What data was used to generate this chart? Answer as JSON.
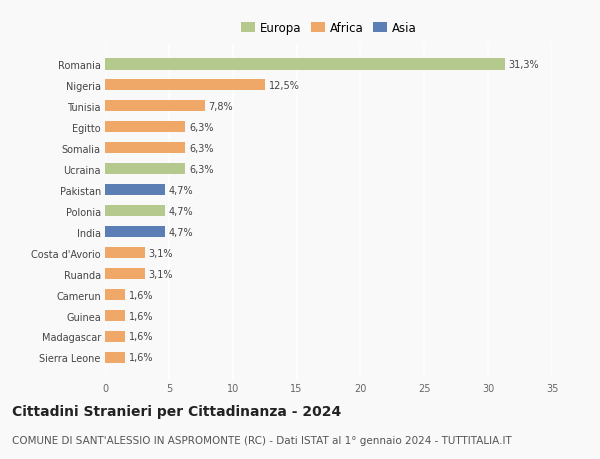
{
  "countries": [
    "Romania",
    "Nigeria",
    "Tunisia",
    "Egitto",
    "Somalia",
    "Ucraina",
    "Pakistan",
    "Polonia",
    "India",
    "Costa d'Avorio",
    "Ruanda",
    "Camerun",
    "Guinea",
    "Madagascar",
    "Sierra Leone"
  ],
  "values": [
    31.3,
    12.5,
    7.8,
    6.3,
    6.3,
    6.3,
    4.7,
    4.7,
    4.7,
    3.1,
    3.1,
    1.6,
    1.6,
    1.6,
    1.6
  ],
  "labels": [
    "31,3%",
    "12,5%",
    "7,8%",
    "6,3%",
    "6,3%",
    "6,3%",
    "4,7%",
    "4,7%",
    "4,7%",
    "3,1%",
    "3,1%",
    "1,6%",
    "1,6%",
    "1,6%",
    "1,6%"
  ],
  "continents": [
    "Europa",
    "Africa",
    "Africa",
    "Africa",
    "Africa",
    "Europa",
    "Asia",
    "Europa",
    "Asia",
    "Africa",
    "Africa",
    "Africa",
    "Africa",
    "Africa",
    "Africa"
  ],
  "colors": {
    "Europa": "#b5c98e",
    "Africa": "#f0a868",
    "Asia": "#5b7fb5"
  },
  "legend_order": [
    "Europa",
    "Africa",
    "Asia"
  ],
  "title": "Cittadini Stranieri per Cittadinanza - 2024",
  "subtitle": "COMUNE DI SANT'ALESSIO IN ASPROMONTE (RC) - Dati ISTAT al 1° gennaio 2024 - TUTTITALIA.IT",
  "xlim": [
    0,
    35
  ],
  "xticks": [
    0,
    5,
    10,
    15,
    20,
    25,
    30,
    35
  ],
  "background_color": "#f9f9f9",
  "grid_color": "#ffffff",
  "bar_height": 0.55,
  "title_fontsize": 10,
  "subtitle_fontsize": 7.5,
  "label_fontsize": 7,
  "tick_fontsize": 7,
  "legend_fontsize": 8.5
}
